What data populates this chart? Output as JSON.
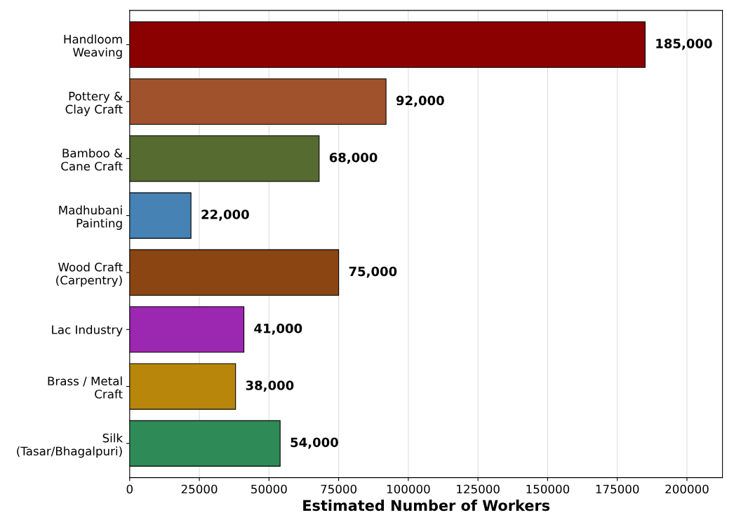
{
  "chart_data": {
    "type": "bar",
    "orientation": "horizontal",
    "xlabel": "Estimated Number of Workers",
    "categories": [
      "Handloom\nWeaving",
      "Pottery &\nClay Craft",
      "Bamboo &\nCane Craft",
      "Madhubani\nPainting",
      "Wood Craft\n(Carpentry)",
      "Lac Industry",
      "Brass / Metal\nCraft",
      "Silk\n(Tasar/Bhagalpuri)"
    ],
    "values": [
      185000,
      92000,
      68000,
      22000,
      75000,
      41000,
      38000,
      54000
    ],
    "colors": [
      "#8b0000",
      "#a0522d",
      "#556b2f",
      "#4682b4",
      "#8b4513",
      "#9c27b0",
      "#b8860b",
      "#2e8b57"
    ],
    "value_labels": [
      "185,000",
      "92,000",
      "68,000",
      "22,000",
      "75,000",
      "41,000",
      "38,000",
      "54,000"
    ],
    "xlim": [
      0,
      212750
    ],
    "xticks": [
      0,
      25000,
      50000,
      75000,
      100000,
      125000,
      150000,
      175000,
      200000
    ],
    "grid": "x"
  }
}
